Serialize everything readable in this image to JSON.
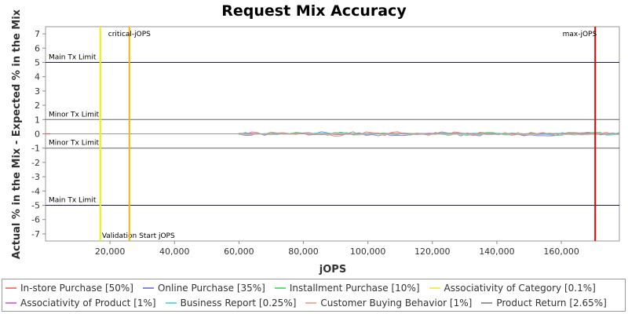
{
  "chart_data": {
    "type": "line",
    "title": "Request Mix Accuracy",
    "xlabel": "jOPS",
    "ylabel": "Actual % in the Mix - Expected % in the Mix",
    "xlim": [
      0,
      178000
    ],
    "ylim": [
      -7.5,
      7.5
    ],
    "x_ticks": [
      20000,
      40000,
      60000,
      80000,
      100000,
      120000,
      140000,
      160000
    ],
    "x_tick_labels": [
      "20,000",
      "40,000",
      "60,000",
      "80,000",
      "100,000",
      "120,000",
      "140,000",
      "160,000"
    ],
    "y_ticks": [
      7,
      6,
      5,
      4,
      3,
      2,
      1,
      0,
      -1,
      -2,
      -3,
      -4,
      -5,
      -6,
      -7
    ],
    "y_tick_labels": [
      "7",
      "6",
      "5",
      "4",
      "3",
      "2",
      "1",
      "0",
      "-1",
      "-2",
      "-3",
      "-4",
      "-5",
      "-6",
      "-7"
    ],
    "limit_lines": [
      {
        "label": "Main Tx Limit",
        "y": 5
      },
      {
        "label": "Minor Tx Limit",
        "y": 1
      },
      {
        "label": "Minor Tx Limit",
        "y": -1
      },
      {
        "label": "Main Tx Limit",
        "y": -5
      }
    ],
    "markers": [
      {
        "label": "Validation Start jOPS",
        "x": 17000,
        "color": "#f2f200",
        "position": "bottom"
      },
      {
        "label": "critical-jOPS",
        "x": 26000,
        "color": "#f0b800",
        "position": "top"
      },
      {
        "label": "max-jOPS",
        "x": 170500,
        "color": "#e80000",
        "position": "top"
      }
    ],
    "series": [
      {
        "name": "In-store Purchase [50%]",
        "color": "#f08080",
        "x_start": 60000,
        "x_end": 178000,
        "amplitude": 0.15,
        "seed": 1
      },
      {
        "name": "Online Purchase [35%]",
        "color": "#8888dd",
        "x_start": 60000,
        "x_end": 178000,
        "amplitude": 0.15,
        "seed": 2
      },
      {
        "name": "Installment Purchase [10%]",
        "color": "#66dd77",
        "x_start": 60000,
        "x_end": 178000,
        "amplitude": 0.12,
        "seed": 3
      },
      {
        "name": "Associativity of Category [0.1%]",
        "color": "#eeee66",
        "x_start": 60000,
        "x_end": 178000,
        "amplitude": 0.05,
        "seed": 4
      },
      {
        "name": "Associativity of Product [1%]",
        "color": "#dd77dd",
        "x_start": 60000,
        "x_end": 178000,
        "amplitude": 0.06,
        "seed": 5
      },
      {
        "name": "Business Report [0.25%]",
        "color": "#66dddd",
        "x_start": 60000,
        "x_end": 178000,
        "amplitude": 0.06,
        "seed": 6
      },
      {
        "name": "Customer Buying Behavior [1%]",
        "color": "#f0b0a0",
        "x_start": 60000,
        "x_end": 178000,
        "amplitude": 0.08,
        "seed": 7
      },
      {
        "name": "Product Return [2.65%]",
        "color": "#999999",
        "x_start": 60000,
        "x_end": 178000,
        "amplitude": 0.06,
        "seed": 8
      }
    ]
  }
}
